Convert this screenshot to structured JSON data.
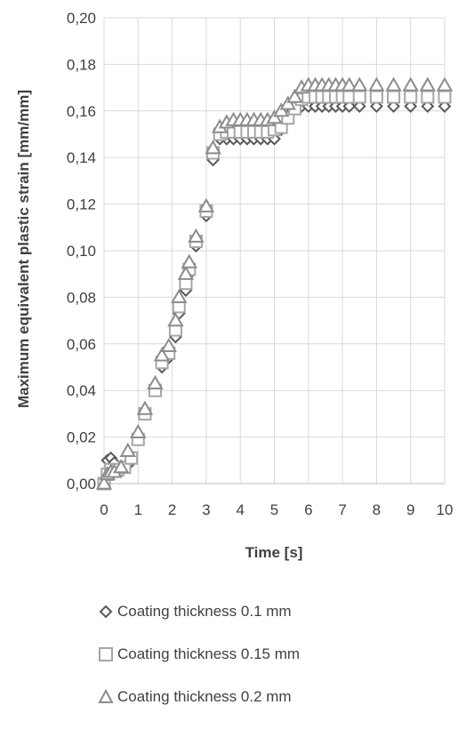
{
  "chart_data": {
    "type": "scatter",
    "xlabel": "Time [s]",
    "ylabel": "Maximum equivalent plastic strain [mm/mm]",
    "xlim": [
      0,
      10
    ],
    "ylim": [
      0,
      0.2
    ],
    "x_ticks": [
      "0",
      "1",
      "2",
      "3",
      "4",
      "5",
      "6",
      "7",
      "8",
      "9",
      "10"
    ],
    "y_ticks": [
      "0,00",
      "0,02",
      "0,04",
      "0,06",
      "0,08",
      "0,10",
      "0,12",
      "0,14",
      "0,16",
      "0,18",
      "0,20"
    ],
    "grid": true,
    "legend_position": "bottom",
    "series": [
      {
        "name": "Coating thickness 0.1 mm",
        "marker": "diamond",
        "color": "#595959",
        "points": [
          [
            0,
            0
          ],
          [
            0.1,
            0.01
          ],
          [
            0.2,
            0.011
          ],
          [
            0.3,
            0.009
          ],
          [
            0.5,
            0.007
          ],
          [
            0.7,
            0.008
          ],
          [
            1.0,
            0.02
          ],
          [
            1.2,
            0.03
          ],
          [
            1.5,
            0.04
          ],
          [
            1.7,
            0.05
          ],
          [
            1.9,
            0.054
          ],
          [
            2.1,
            0.063
          ],
          [
            2.2,
            0.073
          ],
          [
            2.4,
            0.083
          ],
          [
            2.5,
            0.09
          ],
          [
            2.7,
            0.102
          ],
          [
            3.0,
            0.115
          ],
          [
            3.2,
            0.139
          ],
          [
            3.4,
            0.148
          ],
          [
            3.6,
            0.148
          ],
          [
            3.8,
            0.148
          ],
          [
            4.0,
            0.148
          ],
          [
            4.2,
            0.148
          ],
          [
            4.4,
            0.148
          ],
          [
            4.6,
            0.148
          ],
          [
            4.8,
            0.148
          ],
          [
            5.0,
            0.148
          ],
          [
            5.2,
            0.152
          ],
          [
            5.4,
            0.158
          ],
          [
            5.6,
            0.162
          ],
          [
            5.8,
            0.162
          ],
          [
            6.0,
            0.162
          ],
          [
            6.2,
            0.162
          ],
          [
            6.4,
            0.162
          ],
          [
            6.6,
            0.162
          ],
          [
            6.8,
            0.162
          ],
          [
            7.0,
            0.162
          ],
          [
            7.2,
            0.162
          ],
          [
            7.5,
            0.162
          ],
          [
            8.0,
            0.162
          ],
          [
            8.5,
            0.162
          ],
          [
            9.0,
            0.162
          ],
          [
            9.5,
            0.162
          ],
          [
            10.0,
            0.162
          ]
        ]
      },
      {
        "name": "Coating thickness 0.15 mm",
        "marker": "square",
        "color": "#a6a6a6",
        "points": [
          [
            0,
            0
          ],
          [
            0.1,
            0.004
          ],
          [
            0.2,
            0.006
          ],
          [
            0.4,
            0.006
          ],
          [
            0.6,
            0.007
          ],
          [
            0.8,
            0.011
          ],
          [
            1.0,
            0.019
          ],
          [
            1.2,
            0.03
          ],
          [
            1.5,
            0.04
          ],
          [
            1.7,
            0.052
          ],
          [
            1.9,
            0.056
          ],
          [
            2.1,
            0.066
          ],
          [
            2.2,
            0.076
          ],
          [
            2.4,
            0.086
          ],
          [
            2.5,
            0.092
          ],
          [
            2.7,
            0.104
          ],
          [
            3.0,
            0.117
          ],
          [
            3.2,
            0.142
          ],
          [
            3.4,
            0.15
          ],
          [
            3.6,
            0.151
          ],
          [
            3.8,
            0.151
          ],
          [
            4.0,
            0.151
          ],
          [
            4.2,
            0.151
          ],
          [
            4.4,
            0.151
          ],
          [
            4.6,
            0.151
          ],
          [
            4.8,
            0.151
          ],
          [
            5.0,
            0.152
          ],
          [
            5.2,
            0.153
          ],
          [
            5.4,
            0.157
          ],
          [
            5.6,
            0.161
          ],
          [
            5.8,
            0.165
          ],
          [
            6.0,
            0.166
          ],
          [
            6.2,
            0.166
          ],
          [
            6.4,
            0.166
          ],
          [
            6.6,
            0.166
          ],
          [
            6.8,
            0.166
          ],
          [
            7.0,
            0.166
          ],
          [
            7.2,
            0.166
          ],
          [
            7.5,
            0.166
          ],
          [
            8.0,
            0.166
          ],
          [
            8.5,
            0.166
          ],
          [
            9.0,
            0.166
          ],
          [
            9.5,
            0.166
          ],
          [
            10.0,
            0.166
          ]
        ]
      },
      {
        "name": "Coating thickness 0.2 mm",
        "marker": "triangle",
        "color": "#8c8c8c",
        "points": [
          [
            0,
            0
          ],
          [
            0.1,
            0.004
          ],
          [
            0.2,
            0.005
          ],
          [
            0.3,
            0.005
          ],
          [
            0.5,
            0.007
          ],
          [
            0.7,
            0.014
          ],
          [
            1.0,
            0.022
          ],
          [
            1.2,
            0.032
          ],
          [
            1.5,
            0.043
          ],
          [
            1.7,
            0.055
          ],
          [
            1.9,
            0.059
          ],
          [
            2.1,
            0.07
          ],
          [
            2.2,
            0.08
          ],
          [
            2.4,
            0.09
          ],
          [
            2.5,
            0.095
          ],
          [
            2.7,
            0.106
          ],
          [
            3.0,
            0.119
          ],
          [
            3.2,
            0.144
          ],
          [
            3.4,
            0.153
          ],
          [
            3.6,
            0.155
          ],
          [
            3.8,
            0.156
          ],
          [
            4.0,
            0.156
          ],
          [
            4.2,
            0.156
          ],
          [
            4.4,
            0.156
          ],
          [
            4.6,
            0.156
          ],
          [
            4.8,
            0.156
          ],
          [
            5.0,
            0.157
          ],
          [
            5.2,
            0.16
          ],
          [
            5.4,
            0.163
          ],
          [
            5.6,
            0.166
          ],
          [
            5.8,
            0.17
          ],
          [
            6.0,
            0.171
          ],
          [
            6.2,
            0.171
          ],
          [
            6.4,
            0.171
          ],
          [
            6.6,
            0.171
          ],
          [
            6.8,
            0.171
          ],
          [
            7.0,
            0.171
          ],
          [
            7.2,
            0.171
          ],
          [
            7.5,
            0.171
          ],
          [
            8.0,
            0.171
          ],
          [
            8.5,
            0.171
          ],
          [
            9.0,
            0.171
          ],
          [
            9.5,
            0.171
          ],
          [
            10.0,
            0.171
          ]
        ]
      }
    ]
  }
}
